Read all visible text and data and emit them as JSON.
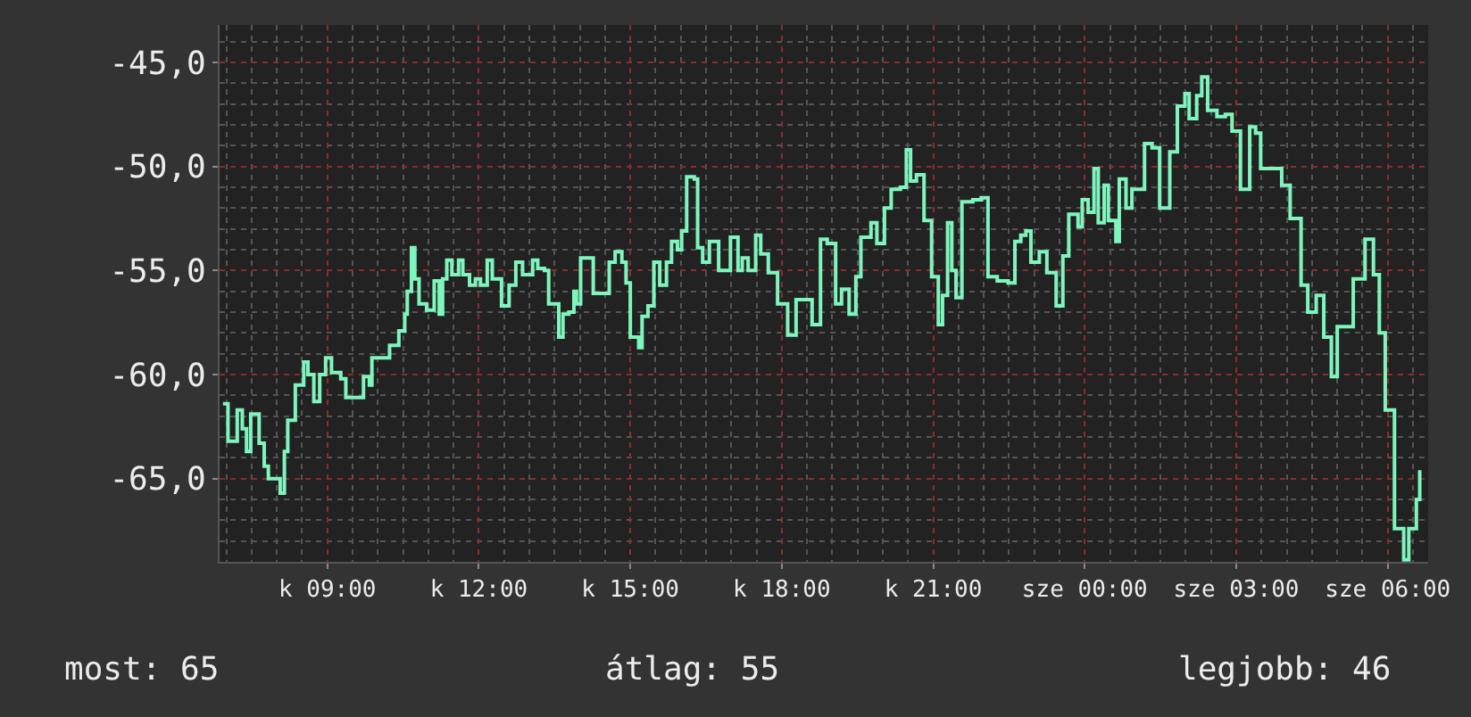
{
  "chart_data": {
    "type": "step",
    "x": [
      "--01-07T06:56",
      "--01-07T07:02",
      "--01-07T07:07",
      "--01-07T07:13",
      "--01-07T07:17",
      "--01-07T07:19",
      "--01-07T07:24",
      "--01-07T07:29",
      "--01-07T07:34",
      "--01-07T07:39",
      "--01-07T07:45",
      "--01-07T07:50",
      "--01-07T08:00",
      "--01-07T08:04",
      "--01-07T08:09",
      "--01-07T08:13",
      "--01-07T08:22",
      "--01-07T08:32",
      "--01-07T08:37",
      "--01-07T08:44",
      "--01-07T08:51",
      "--01-07T08:58",
      "--01-07T09:05",
      "--01-07T09:16",
      "--01-07T09:22",
      "--01-07T09:38",
      "--01-07T09:43",
      "--01-07T09:50",
      "--01-07T09:53",
      "--01-07T10:08",
      "--01-07T10:14",
      "--01-07T10:25",
      "--01-07T10:32",
      "--01-07T10:35",
      "--01-07T10:40",
      "--01-07T10:44",
      "--01-07T10:49",
      "--01-07T10:58",
      "--01-07T11:07",
      "--01-07T11:13",
      "--01-07T11:17",
      "--01-07T11:22",
      "--01-07T11:28",
      "--01-07T11:36",
      "--01-07T11:41",
      "--01-07T11:49",
      "--01-07T11:56",
      "--01-07T12:02",
      "--01-07T12:10",
      "--01-07T12:16",
      "--01-07T12:27",
      "--01-07T12:36",
      "--01-07T12:44",
      "--01-07T12:52",
      "--01-07T13:04",
      "--01-07T13:10",
      "--01-07T13:18",
      "--01-07T13:23",
      "--01-07T13:35",
      "--01-07T13:40",
      "--01-07T13:47",
      "--01-07T13:53",
      "--01-07T13:56",
      "--01-07T14:01",
      "--01-07T14:16",
      "--01-07T14:29",
      "--01-07T14:35",
      "--01-07T14:42",
      "--01-07T14:50",
      "--01-07T14:55",
      "--01-07T15:00",
      "--01-07T15:10",
      "--01-07T15:14",
      "--01-07T15:21",
      "--01-07T15:28",
      "--01-07T15:35",
      "--01-07T15:43",
      "--01-07T15:49",
      "--01-07T15:56",
      "--01-07T16:01",
      "--01-07T16:07",
      "--01-07T16:16",
      "--01-07T16:20",
      "--01-07T16:26",
      "--01-07T16:34",
      "--01-07T16:45",
      "--01-07T16:59",
      "--01-07T17:08",
      "--01-07T17:13",
      "--01-07T17:20",
      "--01-07T17:29",
      "--01-07T17:35",
      "--01-07T17:44",
      "--01-07T17:55",
      "--01-07T18:07",
      "--01-07T18:17",
      "--01-07T18:27",
      "--01-07T18:36",
      "--01-07T18:46",
      "--01-07T18:54",
      "--01-07T19:04",
      "--01-07T19:11",
      "--01-07T19:20",
      "--01-07T19:28",
      "--01-07T19:34",
      "--01-07T19:46",
      "--01-07T19:53",
      "--01-07T20:02",
      "--01-07T20:10",
      "--01-07T20:21",
      "--01-07T20:28",
      "--01-07T20:33",
      "--01-07T20:40",
      "--01-07T20:49",
      "--01-07T20:58",
      "--01-07T21:06",
      "--01-07T21:11",
      "--01-07T21:17",
      "--01-07T21:22",
      "--01-07T21:27",
      "--01-07T21:34",
      "--01-07T21:41",
      "--01-07T21:47",
      "--01-07T21:57",
      "--01-07T22:05",
      "--01-07T22:16",
      "--01-07T22:29",
      "--01-07T22:37",
      "--01-07T22:44",
      "--01-07T22:50",
      "--01-07T22:56",
      "--01-07T23:06",
      "--01-07T23:15",
      "--01-07T23:26",
      "--01-07T23:34",
      "--01-07T23:41",
      "--01-07T23:52",
      "--01-07T23:57",
      "--01-08T00:04",
      "--01-08T00:11",
      "--01-08T00:16",
      "--01-08T00:23",
      "--01-08T00:28",
      "--01-08T00:37",
      "--01-08T00:41",
      "--01-08T00:49",
      "--01-08T00:56",
      "--01-08T01:07",
      "--01-08T01:11",
      "--01-08T01:20",
      "--01-08T01:29",
      "--01-08T01:38",
      "--01-08T01:41",
      "--01-08T01:50",
      "--01-08T01:59",
      "--01-08T02:04",
      "--01-08T02:13",
      "--01-08T02:19",
      "--01-08T02:26",
      "--01-08T02:37",
      "--01-08T02:47",
      "--01-08T02:55",
      "--01-08T03:05",
      "--01-08T03:16",
      "--01-08T03:23",
      "--01-08T03:29",
      "--01-08T03:43",
      "--01-08T03:54",
      "--01-08T04:04",
      "--01-08T04:17",
      "--01-08T04:25",
      "--01-08T04:35",
      "--01-08T04:44",
      "--01-08T04:53",
      "--01-08T05:00",
      "--01-08T05:10",
      "--01-08T05:19",
      "--01-08T05:33",
      "--01-08T05:43",
      "--01-08T05:50",
      "--01-08T05:57",
      "--01-08T06:08",
      "--01-08T06:19",
      "--01-08T06:25",
      "--01-08T06:34",
      "--01-08T06:38"
    ],
    "series": [
      {
        "color": "#7ff5be",
        "values": [
          -61.4,
          -63.2,
          -63.2,
          -61.7,
          -61.7,
          -62.6,
          -63.7,
          -61.9,
          -61.9,
          -63.3,
          -64.4,
          -65.0,
          -65.0,
          -65.7,
          -63.7,
          -62.2,
          -60.5,
          -59.4,
          -60.0,
          -61.3,
          -60.0,
          -59.2,
          -59.9,
          -60.2,
          -61.1,
          -61.1,
          -60.1,
          -60.5,
          -59.2,
          -59.2,
          -58.6,
          -57.9,
          -57.1,
          -56.0,
          -53.9,
          -55.4,
          -56.6,
          -56.9,
          -55.5,
          -57.1,
          -55.4,
          -54.5,
          -55.2,
          -54.5,
          -55.2,
          -55.7,
          -55.4,
          -55.7,
          -54.5,
          -55.4,
          -56.7,
          -55.7,
          -54.6,
          -55.2,
          -54.5,
          -54.9,
          -55.0,
          -56.6,
          -58.2,
          -57.1,
          -57.0,
          -56.0,
          -56.6,
          -54.4,
          -56.1,
          -56.1,
          -54.6,
          -54.1,
          -54.6,
          -55.6,
          -58.2,
          -58.7,
          -57.2,
          -56.7,
          -54.6,
          -55.7,
          -54.6,
          -53.6,
          -54.0,
          -53.1,
          -50.5,
          -50.6,
          -53.9,
          -54.6,
          -53.6,
          -55.0,
          -53.4,
          -55.0,
          -54.4,
          -55.0,
          -53.3,
          -54.2,
          -55.1,
          -56.6,
          -58.1,
          -56.4,
          -56.4,
          -57.6,
          -53.5,
          -53.7,
          -56.6,
          -55.9,
          -57.1,
          -55.3,
          -53.4,
          -52.7,
          -53.7,
          -52.0,
          -51.1,
          -51.0,
          -49.2,
          -50.7,
          -50.4,
          -52.6,
          -55.3,
          -57.6,
          -56.2,
          -52.7,
          -55.0,
          -56.3,
          -51.7,
          -51.7,
          -51.6,
          -51.5,
          -55.3,
          -55.5,
          -55.6,
          -53.6,
          -53.3,
          -53.1,
          -54.6,
          -54.1,
          -55.1,
          -56.7,
          -54.3,
          -52.3,
          -52.9,
          -51.6,
          -52.2,
          -50.1,
          -52.7,
          -50.9,
          -52.6,
          -53.6,
          -50.6,
          -52.0,
          -51.1,
          -51.1,
          -48.9,
          -49.1,
          -52.0,
          -52.0,
          -49.3,
          -47.1,
          -46.5,
          -47.7,
          -46.6,
          -45.7,
          -47.3,
          -47.6,
          -47.5,
          -48.3,
          -51.1,
          -48.1,
          -48.4,
          -50.1,
          -50.1,
          -50.9,
          -52.5,
          -55.7,
          -57.0,
          -56.2,
          -58.2,
          -60.1,
          -57.7,
          -57.7,
          -55.4,
          -53.5,
          -55.2,
          -58.0,
          -61.7,
          -67.4,
          -68.9,
          -67.4,
          -66.0,
          -64.6
        ]
      }
    ],
    "xlim": [
      "--01-07T06:52",
      "--01-08T06:48"
    ],
    "xticks": [
      {
        "value": "--01-07T09:00",
        "label": "k 09:00"
      },
      {
        "value": "--01-07T12:00",
        "label": "k 12:00"
      },
      {
        "value": "--01-07T15:00",
        "label": "k 15:00"
      },
      {
        "value": "--01-07T18:00",
        "label": "k 18:00"
      },
      {
        "value": "--01-07T21:00",
        "label": "k 21:00"
      },
      {
        "value": "--01-08T00:00",
        "label": "sze 00:00"
      },
      {
        "value": "--01-08T03:00",
        "label": "sze 03:00"
      },
      {
        "value": "--01-08T06:00",
        "label": "sze 06:00"
      }
    ],
    "ylim": [
      -69.0,
      -43.2
    ],
    "yticks": [
      {
        "value": -65,
        "label": "-65,0"
      },
      {
        "value": -60,
        "label": "-60,0"
      },
      {
        "value": -55,
        "label": "-55,0"
      },
      {
        "value": -50,
        "label": "-50,0"
      },
      {
        "value": -45,
        "label": "-45,0"
      }
    ],
    "grid": true,
    "annotations": [
      "most: 65",
      "átlag: 55",
      "legjobb: 46"
    ]
  }
}
